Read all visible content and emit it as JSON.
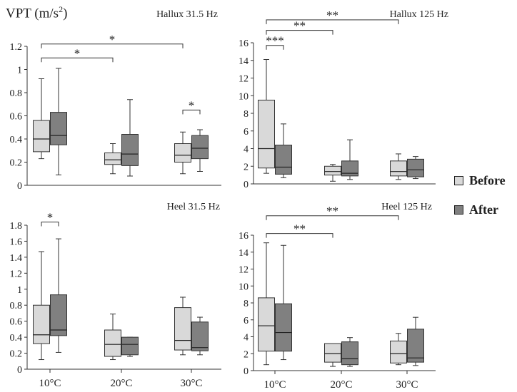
{
  "y_title": {
    "main": "VPT (m/s",
    "sup": "2",
    "close": ")"
  },
  "legend": [
    {
      "label": "Before",
      "color": "#d9d9d9"
    },
    {
      "label": "After",
      "color": "#808080"
    }
  ],
  "chart_data": [
    {
      "type": "boxplot",
      "title": "Hallux 31.5 Hz",
      "categories": [
        "10°C",
        "20°C",
        "30°C"
      ],
      "show_xticks": false,
      "ylim": [
        0,
        1.2
      ],
      "yticks": [
        0,
        0.2,
        0.4,
        0.6,
        0.8,
        1,
        1.2
      ],
      "ytick_labels": [
        "0",
        "0.2",
        "0.4",
        "0.6",
        "0.8",
        "1",
        "1.2"
      ],
      "series": [
        {
          "name": "Before",
          "boxes": [
            {
              "min": 0.23,
              "q1": 0.29,
              "median": 0.4,
              "q3": 0.56,
              "max": 0.92
            },
            {
              "min": 0.1,
              "q1": 0.18,
              "median": 0.22,
              "q3": 0.28,
              "max": 0.36
            },
            {
              "min": 0.1,
              "q1": 0.2,
              "median": 0.26,
              "q3": 0.36,
              "max": 0.46
            }
          ]
        },
        {
          "name": "After",
          "boxes": [
            {
              "min": 0.09,
              "q1": 0.35,
              "median": 0.43,
              "q3": 0.63,
              "max": 1.01
            },
            {
              "min": 0.08,
              "q1": 0.17,
              "median": 0.27,
              "q3": 0.44,
              "max": 0.74
            },
            {
              "min": 0.12,
              "q1": 0.23,
              "median": 0.32,
              "q3": 0.43,
              "max": 0.48
            }
          ]
        }
      ],
      "annotations": [
        {
          "from": "10°C",
          "to": "30°C",
          "y": 1.22,
          "label": "*",
          "type": "between"
        },
        {
          "from": "10°C",
          "to": "20°C",
          "y": 1.1,
          "label": "*",
          "type": "between"
        },
        {
          "category": "30°C",
          "y": 0.65,
          "label": "*",
          "type": "within"
        }
      ]
    },
    {
      "type": "boxplot",
      "title": "Hallux 125 Hz",
      "categories": [
        "10°C",
        "20°C",
        "30°C"
      ],
      "show_xticks": false,
      "ylim": [
        0,
        16
      ],
      "yticks": [
        0,
        2,
        4,
        6,
        8,
        10,
        12,
        14,
        16
      ],
      "ytick_labels": [
        "0",
        "2",
        "4",
        "6",
        "8",
        "10",
        "12",
        "14",
        "16"
      ],
      "series": [
        {
          "name": "Before",
          "boxes": [
            {
              "min": 1.2,
              "q1": 1.8,
              "median": 4.0,
              "q3": 9.5,
              "max": 14.1
            },
            {
              "min": 0.3,
              "q1": 1.0,
              "median": 1.4,
              "q3": 2.0,
              "max": 2.2
            },
            {
              "min": 0.5,
              "q1": 0.9,
              "median": 1.4,
              "q3": 2.6,
              "max": 3.4
            }
          ]
        },
        {
          "name": "After",
          "boxes": [
            {
              "min": 0.7,
              "q1": 1.1,
              "median": 1.9,
              "q3": 4.4,
              "max": 6.8
            },
            {
              "min": 0.5,
              "q1": 0.9,
              "median": 1.2,
              "q3": 2.6,
              "max": 5.0
            },
            {
              "min": 0.6,
              "q1": 0.8,
              "median": 1.6,
              "q3": 2.8,
              "max": 3.1
            }
          ]
        }
      ],
      "annotations": [
        {
          "from": "10°C",
          "to": "30°C",
          "y": 18.6,
          "label": "**",
          "type": "between"
        },
        {
          "from": "10°C",
          "to": "20°C",
          "y": 17.4,
          "label": "**",
          "type": "between"
        },
        {
          "category": "10°C",
          "y": 15.7,
          "label": "***",
          "type": "within"
        }
      ]
    },
    {
      "type": "boxplot",
      "title": "Heel 31.5 Hz",
      "categories": [
        "10°C",
        "20°C",
        "30°C"
      ],
      "show_xticks": true,
      "ylim": [
        0,
        1.8
      ],
      "yticks": [
        0,
        0.2,
        0.4,
        0.6,
        0.8,
        1,
        1.2,
        1.4,
        1.6,
        1.8
      ],
      "ytick_labels": [
        "0",
        "0.2",
        "0.4",
        "0.6",
        "0.8",
        "1",
        "1.2",
        "1.4",
        "1.6",
        "1.8"
      ],
      "series": [
        {
          "name": "Before",
          "boxes": [
            {
              "min": 0.12,
              "q1": 0.32,
              "median": 0.43,
              "q3": 0.8,
              "max": 1.47
            },
            {
              "min": 0.12,
              "q1": 0.16,
              "median": 0.31,
              "q3": 0.49,
              "max": 0.69
            },
            {
              "min": 0.18,
              "q1": 0.24,
              "median": 0.36,
              "q3": 0.77,
              "max": 0.9
            }
          ]
        },
        {
          "name": "After",
          "boxes": [
            {
              "min": 0.21,
              "q1": 0.42,
              "median": 0.49,
              "q3": 0.93,
              "max": 1.63
            },
            {
              "min": 0.16,
              "q1": 0.18,
              "median": 0.31,
              "q3": 0.4,
              "max": 0.4
            },
            {
              "min": 0.18,
              "q1": 0.23,
              "median": 0.27,
              "q3": 0.59,
              "max": 0.65
            }
          ]
        }
      ],
      "annotations": [
        {
          "category": "10°C",
          "y": 1.84,
          "label": "*",
          "type": "within"
        }
      ]
    },
    {
      "type": "boxplot",
      "title": "Heel 125 Hz",
      "categories": [
        "10°C",
        "20°C",
        "30°C"
      ],
      "show_xticks": true,
      "ylim": [
        0,
        16
      ],
      "yticks": [
        0,
        2,
        4,
        6,
        8,
        10,
        12,
        14,
        16
      ],
      "ytick_labels": [
        "0",
        "2",
        "4",
        "6",
        "8",
        "10",
        "12",
        "14",
        "16"
      ],
      "series": [
        {
          "name": "Before",
          "boxes": [
            {
              "min": 0.7,
              "q1": 2.3,
              "median": 5.3,
              "q3": 8.6,
              "max": 15.1
            },
            {
              "min": 0.5,
              "q1": 1.0,
              "median": 2.0,
              "q3": 3.2,
              "max": 3.2
            },
            {
              "min": 0.7,
              "q1": 0.9,
              "median": 2.0,
              "q3": 3.5,
              "max": 4.4
            }
          ]
        },
        {
          "name": "After",
          "boxes": [
            {
              "min": 1.3,
              "q1": 2.3,
              "median": 4.5,
              "q3": 7.9,
              "max": 14.8
            },
            {
              "min": 0.5,
              "q1": 0.7,
              "median": 1.4,
              "q3": 3.4,
              "max": 3.9
            },
            {
              "min": 0.6,
              "q1": 1.0,
              "median": 1.5,
              "q3": 4.9,
              "max": 6.3
            }
          ]
        }
      ],
      "annotations": [
        {
          "from": "10°C",
          "to": "30°C",
          "y": 18.3,
          "label": "**",
          "type": "between"
        },
        {
          "from": "10°C",
          "to": "20°C",
          "y": 16.2,
          "label": "**",
          "type": "between"
        }
      ]
    }
  ]
}
